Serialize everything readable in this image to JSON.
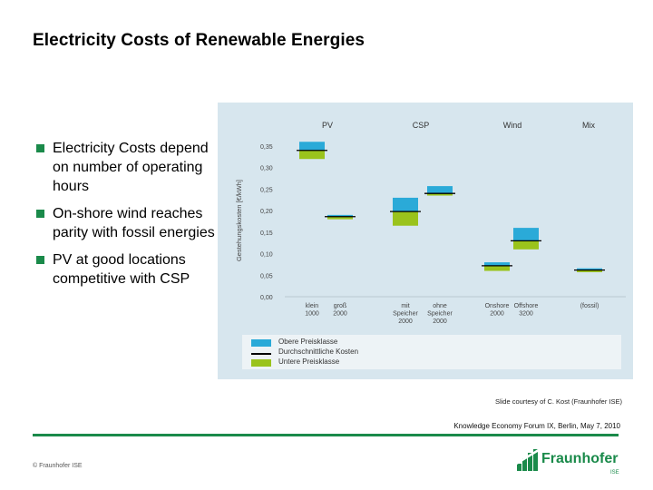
{
  "slide": {
    "title": "Electricity Costs of Renewable Energies",
    "bullets": [
      "Electricity Costs depend on number of operating hours",
      "On-shore wind reaches parity with fossil energies",
      "PV at good locations competitive with CSP"
    ],
    "credit": "Slide courtesy of C. Kost (Fraunhofer ISE)",
    "event": "Knowledge Economy Forum IX, Berlin, May 7, 2010",
    "copyright": "© Fraunhofer ISE",
    "logo": {
      "name": "Fraunhofer",
      "sub": "ISE",
      "icon": "fraunhofer-logo-icon"
    }
  },
  "colors": {
    "accent": "#1a8a4a",
    "panel": "#d7e6ee",
    "upper": "#2aaad8",
    "lower": "#9ac31c",
    "average": "#000000"
  },
  "chart_data": {
    "type": "bar",
    "title": "",
    "ylabel": "Gestehungskosten [€/kWh]",
    "xlabel": "",
    "ylim": [
      0,
      0.35
    ],
    "yticks": [
      "0,00",
      "0,05",
      "0,10",
      "0,15",
      "0,20",
      "0,25",
      "0,30",
      "0,35"
    ],
    "groups": [
      "PV",
      "CSP",
      "Wind",
      "Mix"
    ],
    "categories": [
      {
        "label": [
          "klein",
          "1000"
        ],
        "group": "PV",
        "lower_min": 0.32,
        "average": 0.34,
        "upper_max": 0.36
      },
      {
        "label": [
          "groß",
          "2000"
        ],
        "group": "PV",
        "lower_min": 0.18,
        "average": 0.186,
        "upper_max": 0.19
      },
      {
        "label": [
          "mit",
          "Speicher",
          "2000"
        ],
        "group": "CSP",
        "lower_min": 0.165,
        "average": 0.198,
        "upper_max": 0.23
      },
      {
        "label": [
          "ohne",
          "Speicher",
          "2000"
        ],
        "group": "CSP",
        "lower_min": 0.235,
        "average": 0.24,
        "upper_max": 0.257
      },
      {
        "label": [
          "Onshore",
          "2000"
        ],
        "group": "Wind",
        "lower_min": 0.06,
        "average": 0.072,
        "upper_max": 0.08
      },
      {
        "label": [
          "Offshore",
          "3200"
        ],
        "group": "Wind",
        "lower_min": 0.11,
        "average": 0.13,
        "upper_max": 0.16
      },
      {
        "label": [
          "(fossil)"
        ],
        "group": "Mix",
        "lower_min": 0.057,
        "average": 0.062,
        "upper_max": 0.066
      }
    ],
    "legend": [
      {
        "label": "Obere Preisklasse",
        "kind": "upper"
      },
      {
        "label": "Durchschnittliche Kosten",
        "kind": "average"
      },
      {
        "label": "Untere Preisklasse",
        "kind": "lower"
      }
    ]
  }
}
